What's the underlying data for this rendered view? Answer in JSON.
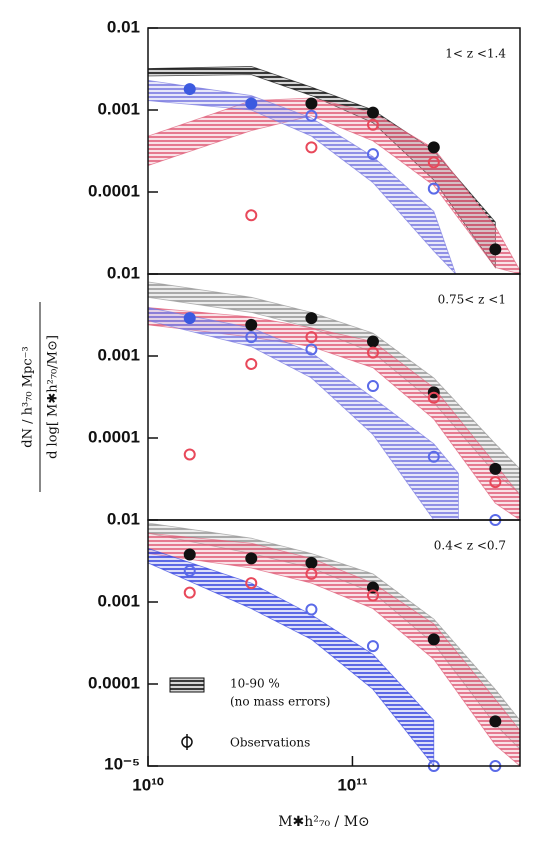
{
  "chart_data": [
    {
      "type": "scatter",
      "annotation": "1< z <1.4",
      "log_x": true,
      "log_y": true,
      "xlim": [
        10000000000.0,
        660000000000.0
      ],
      "ylim": [
        1e-05,
        0.01
      ],
      "yticks": [
        0.01,
        0.001,
        0.0001
      ],
      "x": [
        16000000000.0,
        32000000000.0,
        63000000000.0,
        126000000000.0,
        250000000000.0,
        500000000000.0
      ],
      "series": [
        {
          "color": "#111111",
          "filled": true,
          "values": [
            null,
            null,
            0.0012,
            0.00093,
            0.00035,
            2e-05
          ]
        },
        {
          "color": "#e8485a",
          "filled": false,
          "values": [
            null,
            5.2e-05,
            0.00035,
            0.00066,
            0.00023,
            null
          ]
        },
        {
          "color": "#3c5ae0",
          "filled": true,
          "values": [
            0.0018,
            0.0012,
            null,
            null,
            null,
            null
          ]
        },
        {
          "color": "#5a6ae8",
          "filled": false,
          "values": [
            null,
            null,
            0.00085,
            0.00029,
            0.00011,
            null
          ]
        }
      ],
      "bands": [
        {
          "color": "#111111",
          "x": [
            10000000000.0,
            32000000000.0,
            63000000000.0,
            126000000000.0,
            250000000000.0,
            500000000000.0
          ],
          "upper": [
            0.0032,
            0.0034,
            0.0019,
            0.001,
            0.00032,
            4.3e-05
          ],
          "lower": [
            0.0026,
            0.0027,
            0.0015,
            0.0007,
            0.00014,
            1.2e-05
          ]
        },
        {
          "color": "#e0607a",
          "x": [
            10000000000.0,
            32000000000.0,
            63000000000.0,
            126000000000.0,
            250000000000.0,
            500000000000.0,
            660000000000.0
          ],
          "upper": [
            0.00048,
            0.0013,
            0.0014,
            0.00093,
            0.00034,
            3.8e-05,
            1.1e-05
          ],
          "lower": [
            0.00021,
            0.00056,
            0.00085,
            0.00042,
            0.00012,
            1.2e-05,
            1e-05
          ]
        },
        {
          "color": "#7a7ae0",
          "x": [
            10000000000.0,
            32000000000.0,
            63000000000.0,
            126000000000.0,
            250000000000.0,
            320000000000.0
          ],
          "upper": [
            0.0023,
            0.0015,
            0.0008,
            0.00027,
            5.8e-05,
            1e-05
          ],
          "lower": [
            0.0013,
            0.001,
            0.00048,
            0.00013,
            1.9e-05,
            1e-05
          ]
        }
      ]
    },
    {
      "type": "scatter",
      "annotation": "0.75< z <1",
      "log_x": true,
      "log_y": true,
      "ylabel": [
        "dN / h³₇₀ Mpc⁻³",
        "d log[ M✱h²₇₀/M⊙]"
      ],
      "xlim": [
        10000000000.0,
        660000000000.0
      ],
      "ylim": [
        1e-05,
        0.01
      ],
      "yticks": [
        0.01,
        0.001,
        0.0001
      ],
      "x": [
        16000000000.0,
        32000000000.0,
        63000000000.0,
        126000000000.0,
        250000000000.0,
        500000000000.0
      ],
      "series": [
        {
          "color": "#111111",
          "filled": true,
          "values": [
            null,
            0.0024,
            0.0029,
            0.0015,
            0.00036,
            4.2e-05
          ]
        },
        {
          "color": "#3c5ae0",
          "filled": true,
          "values": [
            0.0029,
            null,
            null,
            null,
            null,
            null
          ]
        },
        {
          "color": "#5a6ae8",
          "filled": false,
          "values": [
            null,
            0.0017,
            0.0012,
            0.00043,
            5.9e-05,
            1e-05
          ]
        },
        {
          "color": "#e8485a",
          "filled": false,
          "values": [
            6.3e-05,
            0.0008,
            0.0017,
            0.0011,
            0.00031,
            2.9e-05
          ]
        }
      ],
      "bands": [
        {
          "color": "#999999",
          "x": [
            10000000000.0,
            32000000000.0,
            63000000000.0,
            126000000000.0,
            250000000000.0,
            500000000000.0,
            660000000000.0
          ],
          "upper": [
            0.008,
            0.0052,
            0.0034,
            0.0019,
            0.00054,
            8.5e-05,
            4.2e-05
          ],
          "lower": [
            0.0052,
            0.0034,
            0.0022,
            0.0011,
            0.00027,
            3.7e-05,
            2.1e-05
          ]
        },
        {
          "color": "#e0607a",
          "x": [
            10000000000.0,
            32000000000.0,
            63000000000.0,
            126000000000.0,
            250000000000.0,
            500000000000.0,
            660000000000.0
          ],
          "upper": [
            0.0039,
            0.003,
            0.0022,
            0.0015,
            0.00041,
            4.8e-05,
            2e-05
          ],
          "lower": [
            0.0024,
            0.0017,
            0.0013,
            0.00072,
            0.00017,
            1.6e-05,
            1e-05
          ]
        },
        {
          "color": "#7a7ae0",
          "x": [
            10000000000.0,
            32000000000.0,
            63000000000.0,
            126000000000.0,
            250000000000.0,
            330000000000.0
          ],
          "upper": [
            0.0039,
            0.0022,
            0.0011,
            0.00031,
            8.5e-05,
            3.7e-05
          ],
          "lower": [
            0.0027,
            0.0013,
            0.00054,
            0.00011,
            1e-05,
            1e-05
          ]
        }
      ]
    },
    {
      "type": "scatter",
      "annotation": "0.4< z <0.7",
      "log_x": true,
      "log_y": true,
      "xlabel": "M✱h²₇₀  /  M⊙",
      "xlim": [
        10000000000.0,
        660000000000.0
      ],
      "ylim": [
        1e-05,
        0.01
      ],
      "yticks": [
        0.01,
        0.001,
        0.0001,
        {
          "value": 1e-05,
          "label": "10⁻⁵"
        }
      ],
      "xticks": [
        {
          "value": 10000000000.0,
          "label": "10¹⁰"
        },
        {
          "value": 100000000000.0,
          "label": "10¹¹"
        }
      ],
      "x": [
        16000000000.0,
        32000000000.0,
        63000000000.0,
        126000000000.0,
        250000000000.0,
        500000000000.0
      ],
      "series": [
        {
          "color": "#111111",
          "filled": true,
          "values": [
            0.0038,
            0.0034,
            0.003,
            0.0015,
            0.00035,
            3.5e-05
          ]
        },
        {
          "color": "#e8485a",
          "filled": false,
          "values": [
            0.0013,
            0.0017,
            0.0022,
            0.0012,
            null,
            null
          ]
        },
        {
          "color": "#5a6ae8",
          "filled": false,
          "values": [
            0.0024,
            null,
            0.00081,
            0.00029,
            1e-05,
            1e-05
          ]
        }
      ],
      "bands": [
        {
          "color": "#999999",
          "x": [
            10000000000.0,
            32000000000.0,
            63000000000.0,
            126000000000.0,
            250000000000.0,
            500000000000.0,
            660000000000.0
          ],
          "upper": [
            0.0092,
            0.006,
            0.0039,
            0.0022,
            0.00062,
            8.6e-05,
            3.6e-05
          ],
          "lower": [
            0.0069,
            0.0039,
            0.0026,
            0.0013,
            0.00031,
            3.2e-05,
            1.6e-05
          ]
        },
        {
          "color": "#e0607a",
          "x": [
            10000000000.0,
            32000000000.0,
            63000000000.0,
            126000000000.0,
            250000000000.0,
            500000000000.0,
            660000000000.0
          ],
          "upper": [
            0.0069,
            0.0052,
            0.0034,
            0.0017,
            0.00054,
            6.5e-05,
            2.7e-05
          ],
          "lower": [
            0.0039,
            0.0026,
            0.0017,
            0.00083,
            0.0002,
            1.8e-05,
            1e-05
          ]
        },
        {
          "color": "#3c4ae0",
          "x": [
            10000000000.0,
            32000000000.0,
            63000000000.0,
            126000000000.0,
            250000000000.0
          ],
          "upper": [
            0.0045,
            0.0017,
            0.0007,
            0.00023,
            3.6e-05
          ],
          "lower": [
            0.003,
            0.00083,
            0.00035,
            8.6e-05,
            1e-05
          ]
        }
      ],
      "legend": {
        "band_label": "10-90 %",
        "band_note": "(no mass errors)",
        "marker_label": "Observations"
      }
    }
  ]
}
